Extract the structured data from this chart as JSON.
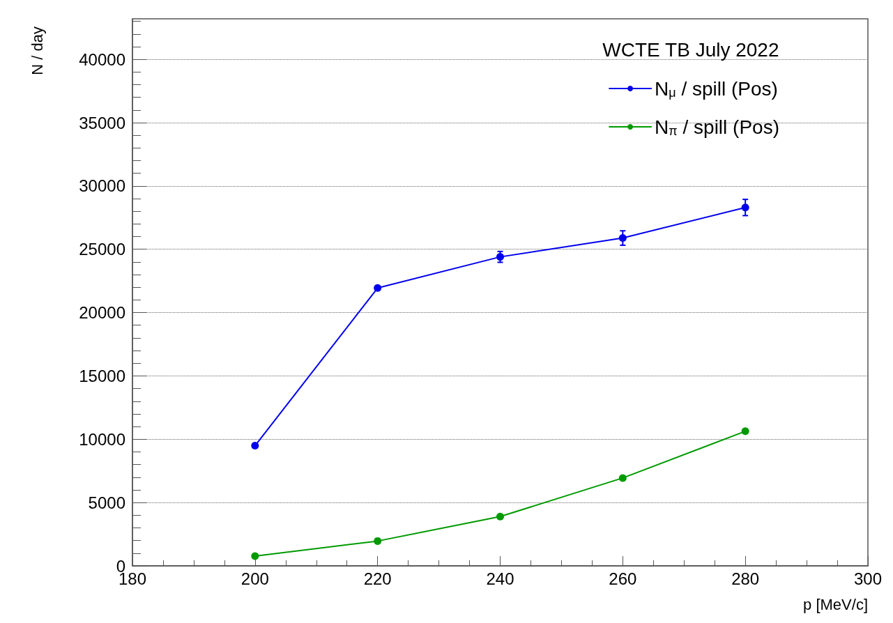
{
  "chart_data": {
    "type": "line",
    "legend_title": "WCTE TB July 2022",
    "xlabel": "p [MeV/c]",
    "ylabel": "N / day",
    "x": [
      200,
      220,
      240,
      260,
      280
    ],
    "series": [
      {
        "name": "N$_{μ}$ / spill (Pos)",
        "color": "#0000ee",
        "values": [
          9490,
          21940,
          24400,
          25890,
          28300
        ],
        "errors": [
          null,
          null,
          430,
          570,
          640
        ]
      },
      {
        "name": "N$_{π}$ / spill (Pos)",
        "color": "#009a00",
        "values": [
          770,
          1960,
          3890,
          6940,
          10630
        ]
      }
    ],
    "xlim": [
      180,
      300
    ],
    "xticks": [
      180,
      200,
      220,
      240,
      260,
      280,
      300
    ],
    "ylim": [
      0,
      43200
    ],
    "yticks": [
      0,
      5000,
      10000,
      15000,
      20000,
      25000,
      30000,
      35000,
      40000
    ],
    "grid": "y",
    "legend": "top right",
    "marker": "circle",
    "line_style": "solid"
  }
}
